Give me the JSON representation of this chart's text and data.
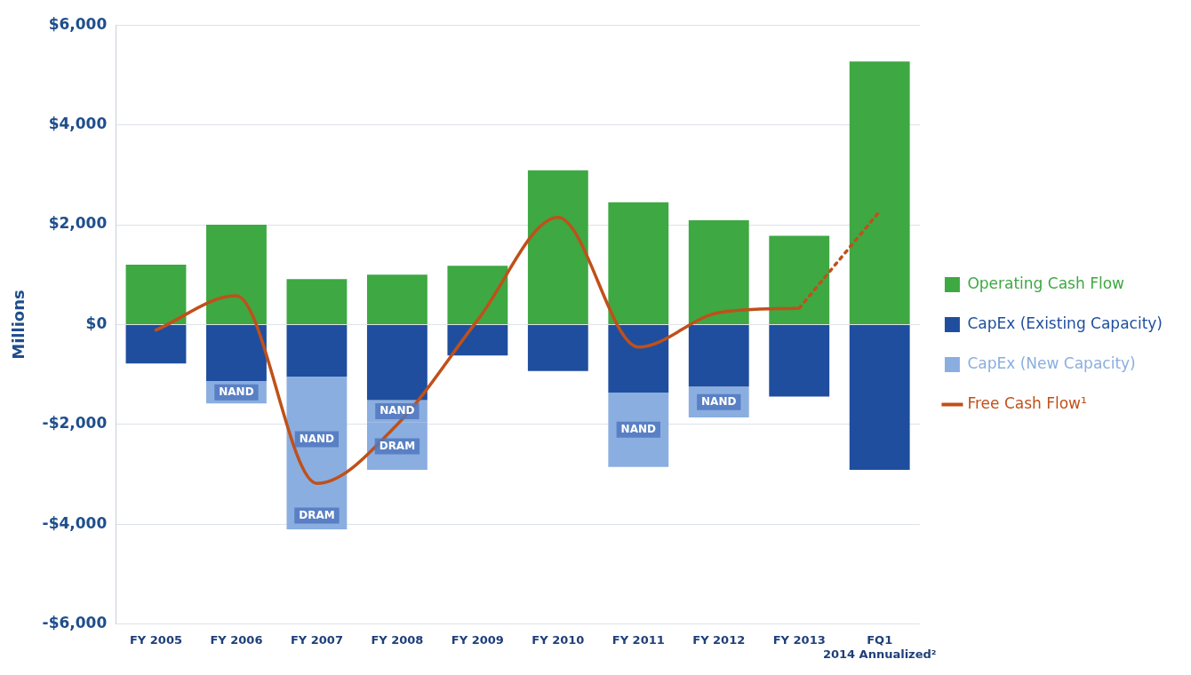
{
  "chart_data": {
    "type": "bar",
    "stacked": true,
    "ylabel": "Millions",
    "categories": [
      "FY 2005",
      "FY 2006",
      "FY 2007",
      "FY 2008",
      "FY 2009",
      "FY 2010",
      "FY 2011",
      "FY 2012",
      "FY 2013",
      "FQ1 2014 Annualized²"
    ],
    "series": [
      {
        "name": "Operating Cash Flow",
        "color": "#3ea843",
        "values": [
          1200,
          2000,
          910,
          1000,
          1180,
          3090,
          2450,
          2090,
          1780,
          5270
        ]
      },
      {
        "name": "CapEx (Existing Capacity)",
        "color": "#1f4e9e",
        "values": [
          -780,
          -1130,
          -1040,
          -1510,
          -620,
          -930,
          -1360,
          -1240,
          -1440,
          -2910
        ]
      },
      {
        "name": "CapEx (New Capacity)",
        "color": "#8aaee0",
        "values": [
          null,
          -450,
          -2510,
          -450,
          null,
          null,
          -1490,
          -620,
          null,
          null
        ],
        "value_labels": [
          null,
          "NAND",
          "NAND",
          "NAND",
          null,
          null,
          "NAND",
          "NAND",
          null,
          null
        ]
      },
      {
        "color": "#8aaee0",
        "values": [
          null,
          null,
          -550,
          -950,
          null,
          null,
          null,
          null,
          null,
          null
        ],
        "value_labels": [
          null,
          null,
          "DRAM",
          "DRAM",
          null,
          null,
          null,
          null,
          null,
          null
        ]
      },
      {
        "name": "Free Cash Flow¹",
        "type": "line",
        "color": "#c0501a",
        "line_style": "solid",
        "values": [
          -110,
          580,
          -3180,
          -2000,
          90,
          2150,
          -450,
          240,
          330,
          null
        ]
      },
      {
        "type": "line",
        "color": "#c0501a",
        "line_style": "dotted",
        "values": [
          null,
          null,
          null,
          null,
          null,
          null,
          null,
          null,
          330,
          2270
        ]
      }
    ],
    "ylim": [
      -6000,
      6000
    ],
    "yticks": [
      {
        "value": -6000,
        "label": "-$6,000"
      },
      {
        "value": -4000,
        "label": "-$4,000"
      },
      {
        "value": -2000,
        "label": "-$2,000"
      },
      {
        "value": 0,
        "label": "$0"
      },
      {
        "value": 2000,
        "label": "$2,000"
      },
      {
        "value": 4000,
        "label": "$4,000"
      },
      {
        "value": 6000,
        "label": "$6,000"
      }
    ],
    "grid": "y",
    "legend": "right",
    "marker": "none"
  }
}
